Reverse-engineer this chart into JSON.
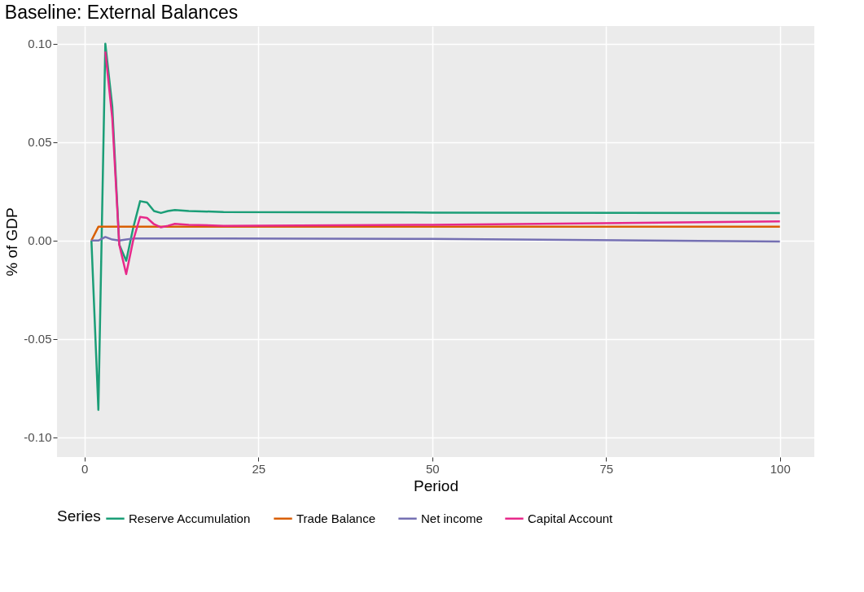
{
  "chart_data": {
    "type": "line",
    "title": "Baseline: External Balances",
    "xlabel": "Period",
    "ylabel": "% of GDP",
    "legend_title": "Series",
    "legend": "bottom",
    "grid": true,
    "xlim": [
      -3.95,
      104.95
    ],
    "xticks": [
      0,
      25,
      50,
      75,
      100
    ],
    "ylim": [
      -0.11,
      0.109
    ],
    "yticks": [
      {
        "value": -0.1,
        "label": "-0.10"
      },
      {
        "value": -0.05,
        "label": "-0.05"
      },
      {
        "value": 0,
        "label": "0.00"
      },
      {
        "value": 0.05,
        "label": "0.05"
      },
      {
        "value": 0.1,
        "label": "0.10"
      }
    ],
    "series": [
      {
        "name": "Reserve Accumulation",
        "color": "#1b9e77",
        "x": [
          1,
          2,
          3,
          4,
          5,
          6,
          7,
          8,
          9,
          10,
          11,
          12,
          13,
          15,
          20,
          50,
          100
        ],
        "values": [
          0,
          -0.086,
          0.1,
          0.068,
          -0.002,
          -0.0103,
          0.0063,
          0.02,
          0.0193,
          0.015,
          0.014,
          0.015,
          0.0155,
          0.015,
          0.0145,
          0.0142,
          0.014
        ]
      },
      {
        "name": "Trade Balance",
        "color": "#d95f02",
        "x": [
          1,
          2,
          3,
          50,
          100
        ],
        "values": [
          0,
          0.007,
          0.007,
          0.007,
          0.007
        ]
      },
      {
        "name": "Net income",
        "color": "#7570b3",
        "x": [
          1,
          2,
          3,
          4,
          5,
          6,
          7,
          20,
          50,
          100
        ],
        "values": [
          0,
          0,
          0.0018,
          0.0005,
          0,
          0.0005,
          0.001,
          0.001,
          0.0008,
          -0.0005
        ]
      },
      {
        "name": "Capital Account",
        "color": "#e7298a",
        "x": [
          3,
          4,
          5,
          6,
          7,
          8,
          9,
          10,
          11,
          12,
          13,
          15,
          20,
          50,
          100
        ],
        "values": [
          0.096,
          0.062,
          -0.002,
          -0.017,
          0,
          0.012,
          0.0115,
          0.0083,
          0.0067,
          0.0075,
          0.0085,
          0.008,
          0.0075,
          0.008,
          0.0097
        ]
      }
    ]
  }
}
